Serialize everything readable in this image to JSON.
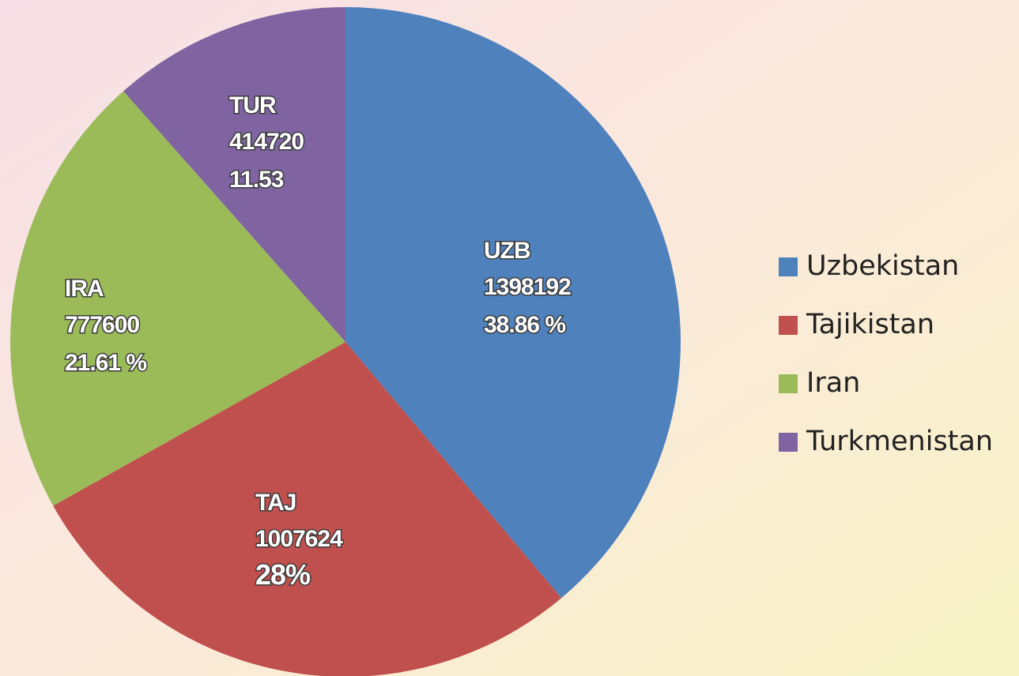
{
  "chart_data": {
    "type": "pie",
    "categories": [
      "Uzbekistan",
      "Tajikistan",
      "Iran",
      "Turkmenistan"
    ],
    "short_labels": [
      "UZB",
      "TAJ",
      "IRA",
      "TUR"
    ],
    "values": [
      1398192,
      1007624,
      777600,
      414720
    ],
    "percent_labels": [
      "38.86 %",
      "28%",
      "21.61 %",
      "11.53"
    ],
    "colors": [
      "#4f81bd",
      "#c0504d",
      "#9bbb59",
      "#8064a2"
    ],
    "legend": "right"
  }
}
